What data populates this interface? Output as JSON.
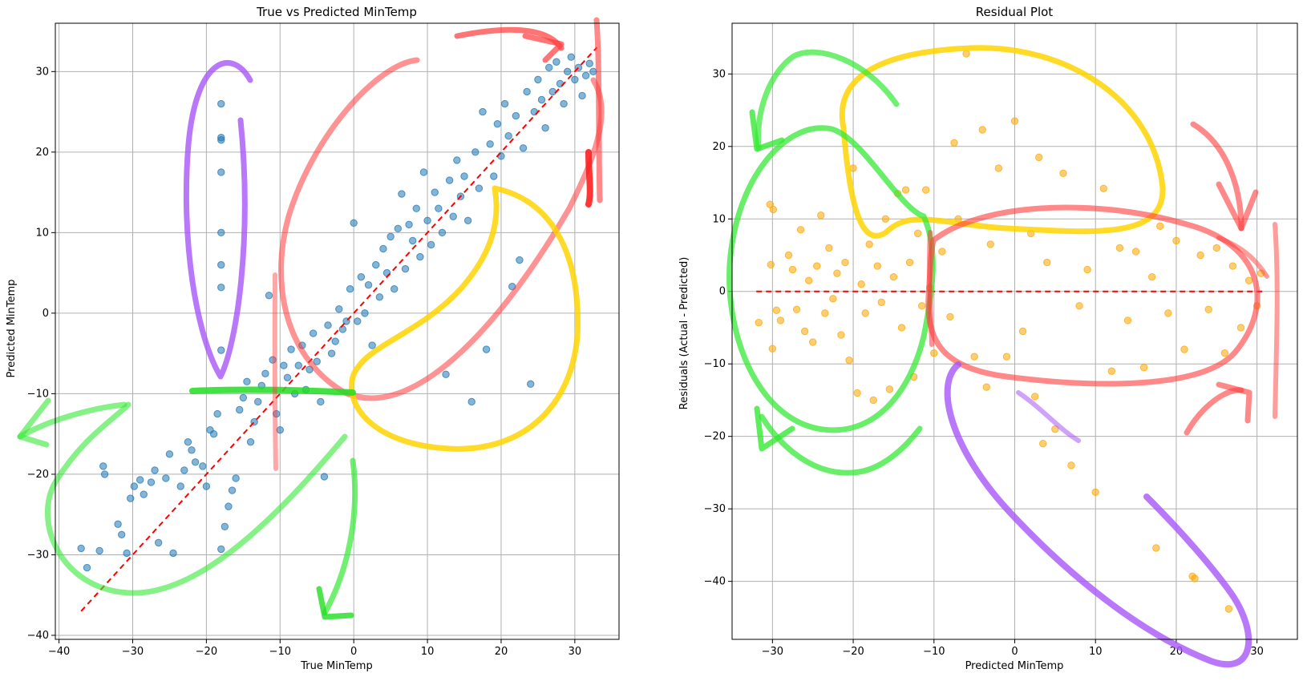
{
  "chart_data": [
    {
      "type": "scatter",
      "title": "True vs Predicted MinTemp",
      "xlabel": "True MinTemp",
      "ylabel": "Predicted MinTemp",
      "xlim": [
        -40.5,
        36
      ],
      "ylim": [
        -40.5,
        36
      ],
      "xticks": [
        -40,
        -30,
        -20,
        -10,
        0,
        10,
        20,
        30
      ],
      "yticks": [
        -40,
        -30,
        -20,
        -10,
        0,
        10,
        20,
        30
      ],
      "xtick_labels": [
        "−40",
        "−30",
        "−20",
        "−10",
        "0",
        "10",
        "20",
        "30"
      ],
      "ytick_labels": [
        "−40",
        "−30",
        "−20",
        "−10",
        "0",
        "10",
        "20",
        "30"
      ],
      "grid": true,
      "point_color": "#1f77b4",
      "reference_line": {
        "x": [
          -37,
          33
        ],
        "y": [
          -37,
          33
        ],
        "color": "#ff0000",
        "style": "dashed"
      },
      "points": [
        [
          -37.0,
          -29.2
        ],
        [
          -36.2,
          -31.6
        ],
        [
          -34.5,
          -29.5
        ],
        [
          -33.8,
          -20.0
        ],
        [
          -34.0,
          -19.0
        ],
        [
          -32.0,
          -26.2
        ],
        [
          -31.5,
          -27.5
        ],
        [
          -30.8,
          -29.8
        ],
        [
          -30.3,
          -23.0
        ],
        [
          -29.8,
          -21.5
        ],
        [
          -29.0,
          -20.7
        ],
        [
          -28.5,
          -22.5
        ],
        [
          -27.5,
          -21.0
        ],
        [
          -27.0,
          -19.5
        ],
        [
          -26.5,
          -28.5
        ],
        [
          -25.5,
          -20.5
        ],
        [
          -25.0,
          -17.5
        ],
        [
          -24.5,
          -29.8
        ],
        [
          -23.5,
          -21.5
        ],
        [
          -23.0,
          -19.5
        ],
        [
          -22.5,
          -16.0
        ],
        [
          -22.0,
          -17.0
        ],
        [
          -21.5,
          -18.5
        ],
        [
          -20.5,
          -19.0
        ],
        [
          -20.0,
          -21.5
        ],
        [
          -19.5,
          -14.5
        ],
        [
          -19.0,
          -15.0
        ],
        [
          -18.5,
          -12.5
        ],
        [
          -18.0,
          -29.3
        ],
        [
          -17.5,
          -26.5
        ],
        [
          -17.0,
          -24.0
        ],
        [
          -16.5,
          -22.0
        ],
        [
          -16.0,
          -20.5
        ],
        [
          -15.5,
          -12.0
        ],
        [
          -15.0,
          -10.5
        ],
        [
          -14.5,
          -8.5
        ],
        [
          -14.0,
          -16.0
        ],
        [
          -13.5,
          -13.5
        ],
        [
          -13.0,
          -11.0
        ],
        [
          -12.5,
          -9.0
        ],
        [
          -12.0,
          -7.5
        ],
        [
          -11.5,
          2.2
        ],
        [
          -11.0,
          -5.8
        ],
        [
          -10.5,
          -12.5
        ],
        [
          -10.0,
          -14.5
        ],
        [
          -9.5,
          -6.5
        ],
        [
          -9.0,
          -8.0
        ],
        [
          -8.5,
          -4.5
        ],
        [
          -8.0,
          -10.0
        ],
        [
          -7.5,
          -6.5
        ],
        [
          -7.0,
          -4.0
        ],
        [
          -6.5,
          -9.5
        ],
        [
          -6.0,
          -7.0
        ],
        [
          -5.5,
          -2.5
        ],
        [
          -5.0,
          -6.0
        ],
        [
          -4.5,
          -11.0
        ],
        [
          -4.0,
          -20.3
        ],
        [
          -3.5,
          -1.5
        ],
        [
          -3.0,
          -5.0
        ],
        [
          -2.5,
          -3.5
        ],
        [
          -2.0,
          0.5
        ],
        [
          -1.5,
          -2.0
        ],
        [
          -1.0,
          -1.0
        ],
        [
          -0.5,
          3.0
        ],
        [
          0.0,
          11.2
        ],
        [
          0.5,
          -1.0
        ],
        [
          1.0,
          4.5
        ],
        [
          1.5,
          0.0
        ],
        [
          2.0,
          3.5
        ],
        [
          2.5,
          -4.0
        ],
        [
          3.0,
          6.0
        ],
        [
          3.5,
          2.0
        ],
        [
          4.0,
          8.0
        ],
        [
          4.5,
          5.0
        ],
        [
          5.0,
          9.5
        ],
        [
          5.5,
          3.0
        ],
        [
          6.0,
          10.5
        ],
        [
          6.5,
          14.8
        ],
        [
          7.0,
          5.5
        ],
        [
          7.5,
          11.0
        ],
        [
          8.0,
          9.0
        ],
        [
          8.5,
          13.0
        ],
        [
          9.0,
          7.0
        ],
        [
          9.5,
          17.5
        ],
        [
          10.0,
          11.5
        ],
        [
          10.5,
          8.5
        ],
        [
          11.0,
          15.0
        ],
        [
          11.5,
          13.0
        ],
        [
          12.0,
          10.0
        ],
        [
          12.5,
          -7.6
        ],
        [
          13.0,
          16.5
        ],
        [
          13.5,
          12.0
        ],
        [
          14.0,
          19.0
        ],
        [
          14.5,
          14.5
        ],
        [
          15.0,
          17.0
        ],
        [
          15.5,
          11.5
        ],
        [
          16.0,
          -11.0
        ],
        [
          16.5,
          20.0
        ],
        [
          17.0,
          15.5
        ],
        [
          17.5,
          25.0
        ],
        [
          18.0,
          -4.5
        ],
        [
          18.5,
          21.0
        ],
        [
          19.0,
          17.0
        ],
        [
          19.5,
          23.5
        ],
        [
          20.0,
          19.5
        ],
        [
          20.5,
          26.0
        ],
        [
          21.0,
          22.0
        ],
        [
          21.5,
          3.3
        ],
        [
          22.0,
          24.5
        ],
        [
          22.5,
          6.6
        ],
        [
          23.0,
          20.5
        ],
        [
          23.5,
          27.5
        ],
        [
          24.0,
          -8.8
        ],
        [
          24.5,
          25.0
        ],
        [
          25.0,
          29.0
        ],
        [
          25.5,
          26.5
        ],
        [
          26.0,
          23.0
        ],
        [
          26.5,
          30.5
        ],
        [
          27.0,
          27.5
        ],
        [
          27.5,
          31.2
        ],
        [
          28.0,
          28.5
        ],
        [
          28.5,
          26.0
        ],
        [
          29.0,
          30.0
        ],
        [
          29.5,
          31.8
        ],
        [
          30.0,
          29.0
        ],
        [
          30.5,
          30.5
        ],
        [
          31.0,
          27.0
        ],
        [
          31.5,
          29.5
        ],
        [
          32.0,
          31.0
        ],
        [
          32.5,
          30.0
        ],
        [
          -18.0,
          26.0
        ],
        [
          -18.0,
          21.8
        ],
        [
          -18.0,
          21.5
        ],
        [
          -18.0,
          17.5
        ],
        [
          -18.0,
          10.0
        ],
        [
          -18.0,
          6.0
        ],
        [
          -18.0,
          3.2
        ],
        [
          -18.0,
          -4.6
        ]
      ]
    },
    {
      "type": "scatter",
      "title": "Residual Plot",
      "xlabel": "Predicted MinTemp",
      "ylabel": "Residuals (Actual - Predicted)",
      "xlim": [
        -35,
        35
      ],
      "ylim": [
        -48,
        37
      ],
      "xticks": [
        -30,
        -20,
        -10,
        0,
        10,
        20,
        30
      ],
      "yticks": [
        -40,
        -30,
        -20,
        -10,
        0,
        10,
        20,
        30
      ],
      "xtick_labels": [
        "−30",
        "−20",
        "−10",
        "0",
        "10",
        "20",
        "30"
      ],
      "ytick_labels": [
        "−40",
        "−30",
        "−20",
        "−10",
        "0",
        "10",
        "20",
        "30"
      ],
      "grid": true,
      "point_color": "#ffa500",
      "reference_line": {
        "x": [
          -32,
          31
        ],
        "y": [
          0,
          0
        ],
        "color": "#ff0000",
        "style": "dashed"
      },
      "points": [
        [
          -31.7,
          -4.3
        ],
        [
          -30.3,
          12.0
        ],
        [
          -29.9,
          11.3
        ],
        [
          -30.2,
          3.7
        ],
        [
          -29.5,
          -2.6
        ],
        [
          -30.0,
          -7.9
        ],
        [
          -29.0,
          -4.0
        ],
        [
          -28.0,
          5.0
        ],
        [
          -27.5,
          3.0
        ],
        [
          -27.0,
          -2.5
        ],
        [
          -26.5,
          8.5
        ],
        [
          -26.0,
          -5.5
        ],
        [
          -25.5,
          1.5
        ],
        [
          -25.0,
          -7.0
        ],
        [
          -24.5,
          3.5
        ],
        [
          -24.0,
          10.5
        ],
        [
          -23.5,
          -3.0
        ],
        [
          -23.0,
          6.0
        ],
        [
          -22.5,
          -1.0
        ],
        [
          -22.0,
          2.5
        ],
        [
          -21.5,
          -6.0
        ],
        [
          -21.0,
          4.0
        ],
        [
          -20.5,
          -9.5
        ],
        [
          -20.0,
          17.0
        ],
        [
          -19.5,
          -14.0
        ],
        [
          -19.0,
          1.0
        ],
        [
          -18.5,
          -3.0
        ],
        [
          -18.0,
          6.5
        ],
        [
          -17.5,
          -15.0
        ],
        [
          -17.0,
          3.5
        ],
        [
          -16.5,
          -1.5
        ],
        [
          -16.0,
          10.0
        ],
        [
          -15.5,
          -13.5
        ],
        [
          -15.0,
          2.0
        ],
        [
          -14.5,
          13.5
        ],
        [
          -14.0,
          -5.0
        ],
        [
          -13.5,
          14.0
        ],
        [
          -13.0,
          4.0
        ],
        [
          -12.5,
          -11.8
        ],
        [
          -12.0,
          8.0
        ],
        [
          -11.5,
          -2.0
        ],
        [
          -11.0,
          14.0
        ],
        [
          -10.5,
          0.5
        ],
        [
          -10.0,
          -8.5
        ],
        [
          -9.0,
          5.5
        ],
        [
          -8.0,
          -3.5
        ],
        [
          -7.5,
          20.5
        ],
        [
          -7.0,
          10.0
        ],
        [
          -6.0,
          32.8
        ],
        [
          -5.0,
          -9.0
        ],
        [
          -4.0,
          22.3
        ],
        [
          -3.5,
          -13.2
        ],
        [
          -3.0,
          6.5
        ],
        [
          -2.0,
          17.0
        ],
        [
          -1.0,
          -9.0
        ],
        [
          0.0,
          23.5
        ],
        [
          1.0,
          -5.5
        ],
        [
          2.0,
          8.0
        ],
        [
          2.5,
          -14.5
        ],
        [
          3.0,
          18.5
        ],
        [
          3.5,
          -21.0
        ],
        [
          4.0,
          4.0
        ],
        [
          5.0,
          -19.0
        ],
        [
          6.0,
          16.3
        ],
        [
          7.0,
          -24.0
        ],
        [
          8.0,
          -2.0
        ],
        [
          9.0,
          3.0
        ],
        [
          10.0,
          -27.7
        ],
        [
          11.0,
          14.2
        ],
        [
          12.0,
          -11.0
        ],
        [
          13.0,
          6.0
        ],
        [
          14.0,
          -4.0
        ],
        [
          15.0,
          5.5
        ],
        [
          16.0,
          -10.5
        ],
        [
          17.0,
          2.0
        ],
        [
          17.5,
          -35.4
        ],
        [
          18.0,
          9.0
        ],
        [
          19.0,
          -3.0
        ],
        [
          20.0,
          7.0
        ],
        [
          21.0,
          -8.0
        ],
        [
          22.0,
          -39.3
        ],
        [
          22.3,
          -39.6
        ],
        [
          23.0,
          5.0
        ],
        [
          24.0,
          -2.5
        ],
        [
          25.0,
          6.0
        ],
        [
          26.0,
          -8.5
        ],
        [
          26.5,
          -43.8
        ],
        [
          27.0,
          3.5
        ],
        [
          28.0,
          -5.0
        ],
        [
          29.0,
          1.5
        ],
        [
          30.0,
          -2.0
        ],
        [
          30.5,
          2.5
        ]
      ]
    }
  ]
}
